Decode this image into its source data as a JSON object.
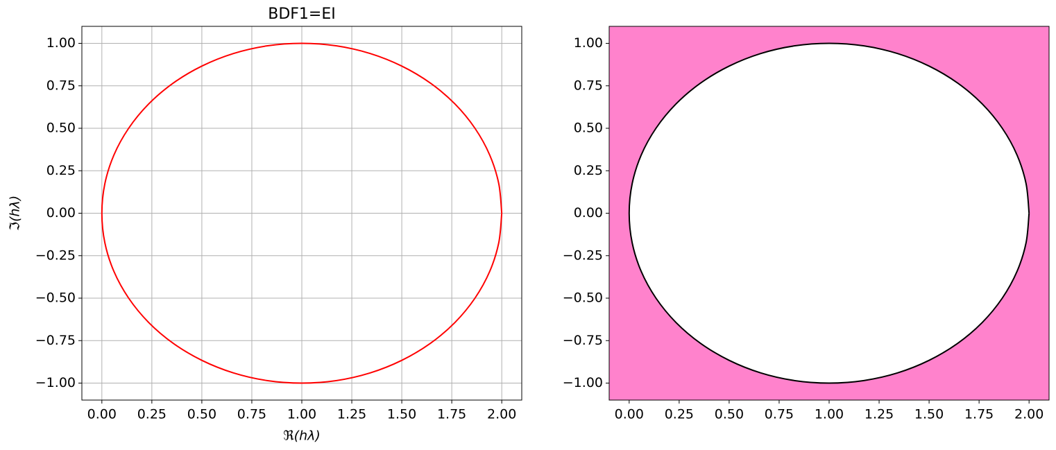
{
  "chart_data": [
    {
      "type": "line",
      "title": "BDF1=EI",
      "x_label": "ℜ(hλ)",
      "y_label": "ℑ(hλ)",
      "grid": true,
      "xlim": [
        -0.1,
        2.1
      ],
      "ylim": [
        -1.1,
        1.1
      ],
      "xticks": [
        {
          "value": 0,
          "label": "0.00"
        },
        {
          "value": 0.25,
          "label": "0.25"
        },
        {
          "value": 0.5,
          "label": "0.50"
        },
        {
          "value": 0.75,
          "label": "0.75"
        },
        {
          "value": 1,
          "label": "1.00"
        },
        {
          "value": 1.25,
          "label": "1.25"
        },
        {
          "value": 1.5,
          "label": "1.50"
        },
        {
          "value": 1.75,
          "label": "1.75"
        },
        {
          "value": 2,
          "label": "2.00"
        }
      ],
      "yticks": [
        {
          "value": -1,
          "label": "−1.00"
        },
        {
          "value": -0.75,
          "label": "−0.75"
        },
        {
          "value": -0.5,
          "label": "−0.50"
        },
        {
          "value": -0.25,
          "label": "−0.25"
        },
        {
          "value": 0,
          "label": "0.00"
        },
        {
          "value": 0.25,
          "label": "0.25"
        },
        {
          "value": 0.5,
          "label": "0.50"
        },
        {
          "value": 0.75,
          "label": "0.75"
        },
        {
          "value": 1,
          "label": "1.00"
        }
      ],
      "color": "#ff0000",
      "x": [
        2,
        1.985,
        1.94,
        1.866,
        1.766,
        1.643,
        1.5,
        1.342,
        1.174,
        1,
        0.826,
        0.658,
        0.5,
        0.357,
        0.234,
        0.134,
        0.06,
        0.015,
        0,
        0.015,
        0.06,
        0.134,
        0.234,
        0.357,
        0.5,
        0.658,
        0.826,
        1,
        1.174,
        1.342,
        1.5,
        1.643,
        1.766,
        1.866,
        1.94,
        1.985,
        2
      ],
      "y": [
        0,
        0.174,
        0.342,
        0.5,
        0.643,
        0.766,
        0.866,
        0.94,
        0.985,
        1,
        0.985,
        0.94,
        0.866,
        0.766,
        0.643,
        0.5,
        0.342,
        0.174,
        0,
        -0.174,
        -0.342,
        -0.5,
        -0.643,
        -0.766,
        -0.866,
        -0.94,
        -0.985,
        -1,
        -0.985,
        -0.94,
        -0.866,
        -0.766,
        -0.643,
        -0.5,
        -0.342,
        -0.174,
        0
      ]
    },
    {
      "type": "region",
      "grid": false,
      "xlim": [
        -0.1,
        2.1
      ],
      "ylim": [
        -1.1,
        1.1
      ],
      "xticks": [
        {
          "value": 0,
          "label": "0.00"
        },
        {
          "value": 0.25,
          "label": "0.25"
        },
        {
          "value": 0.5,
          "label": "0.50"
        },
        {
          "value": 0.75,
          "label": "0.75"
        },
        {
          "value": 1,
          "label": "1.00"
        },
        {
          "value": 1.25,
          "label": "1.25"
        },
        {
          "value": 1.5,
          "label": "1.50"
        },
        {
          "value": 1.75,
          "label": "1.75"
        },
        {
          "value": 2,
          "label": "2.00"
        }
      ],
      "yticks": [
        {
          "value": -1,
          "label": "−1.00"
        },
        {
          "value": -0.75,
          "label": "−0.75"
        },
        {
          "value": -0.5,
          "label": "−0.50"
        },
        {
          "value": -0.25,
          "label": "−0.25"
        },
        {
          "value": 0,
          "label": "0.00"
        },
        {
          "value": 0.25,
          "label": "0.25"
        },
        {
          "value": 0.5,
          "label": "0.50"
        },
        {
          "value": 0.75,
          "label": "0.75"
        },
        {
          "value": 1,
          "label": "1.00"
        }
      ],
      "color": "#000000",
      "fill_color": "#ff82cc",
      "x": [
        2,
        1.985,
        1.94,
        1.866,
        1.766,
        1.643,
        1.5,
        1.342,
        1.174,
        1,
        0.826,
        0.658,
        0.5,
        0.357,
        0.234,
        0.134,
        0.06,
        0.015,
        0,
        0.015,
        0.06,
        0.134,
        0.234,
        0.357,
        0.5,
        0.658,
        0.826,
        1,
        1.174,
        1.342,
        1.5,
        1.643,
        1.766,
        1.866,
        1.94,
        1.985,
        2
      ],
      "y": [
        0,
        0.174,
        0.342,
        0.5,
        0.643,
        0.766,
        0.866,
        0.94,
        0.985,
        1,
        0.985,
        0.94,
        0.866,
        0.766,
        0.643,
        0.5,
        0.342,
        0.174,
        0,
        -0.174,
        -0.342,
        -0.5,
        -0.643,
        -0.766,
        -0.866,
        -0.94,
        -0.985,
        -1,
        -0.985,
        -0.94,
        -0.866,
        -0.766,
        -0.643,
        -0.5,
        -0.342,
        -0.174,
        0
      ]
    }
  ]
}
